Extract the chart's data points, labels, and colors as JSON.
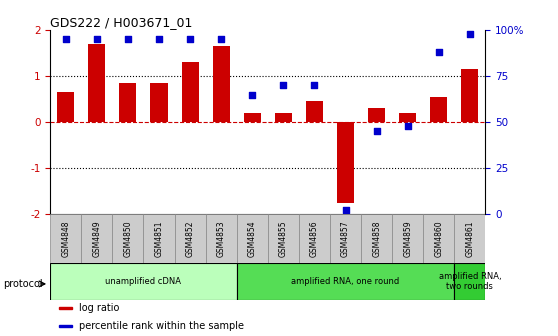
{
  "title": "GDS222 / H003671_01",
  "samples": [
    "GSM4848",
    "GSM4849",
    "GSM4850",
    "GSM4851",
    "GSM4852",
    "GSM4853",
    "GSM4854",
    "GSM4855",
    "GSM4856",
    "GSM4857",
    "GSM4858",
    "GSM4859",
    "GSM4860",
    "GSM4861"
  ],
  "log_ratio": [
    0.65,
    1.7,
    0.85,
    0.85,
    1.3,
    1.65,
    0.2,
    0.2,
    0.45,
    -1.75,
    0.3,
    0.2,
    0.55,
    1.15
  ],
  "percentile": [
    95,
    95,
    95,
    95,
    95,
    95,
    65,
    70,
    70,
    2,
    45,
    48,
    88,
    98
  ],
  "bar_color": "#cc0000",
  "dot_color": "#0000cc",
  "protocol_groups": [
    {
      "label": "unamplified cDNA",
      "start": 0,
      "end": 5,
      "color": "#bbffbb"
    },
    {
      "label": "amplified RNA, one round",
      "start": 6,
      "end": 12,
      "color": "#55dd55"
    },
    {
      "label": "amplified RNA,\ntwo rounds",
      "start": 13,
      "end": 13,
      "color": "#33cc33"
    }
  ],
  "legend_items": [
    {
      "color": "#cc0000",
      "label": "log ratio"
    },
    {
      "color": "#0000cc",
      "label": "percentile rank within the sample"
    }
  ]
}
